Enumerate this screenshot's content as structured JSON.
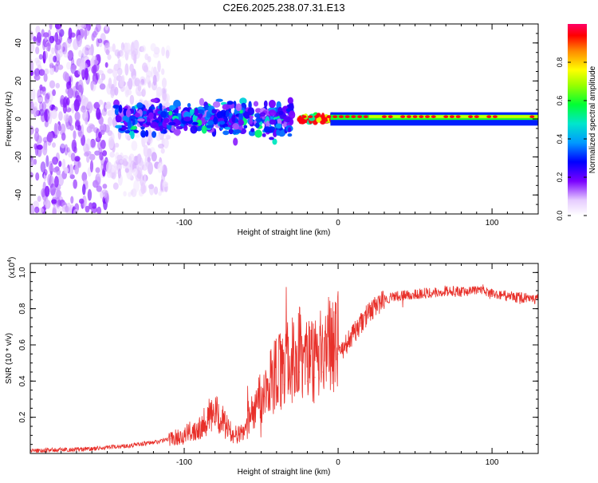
{
  "figure_title": "C2E6.2025.238.07.31.E13",
  "chart_data": [
    {
      "type": "heatmap",
      "title": "C2E6.2025.238.07.31.E13",
      "xlabel": "Height of straight line (km)",
      "ylabel": "Frequency (Hz)",
      "xlim": [
        -200,
        130
      ],
      "ylim": [
        -50,
        50
      ],
      "x_ticks": [
        -100,
        0,
        100
      ],
      "x_tick_labels": [
        "-100",
        "0",
        "100"
      ],
      "y_ticks": [
        -40,
        -20,
        0,
        20,
        40
      ],
      "y_tick_labels": [
        "-40",
        "-20",
        "0",
        "20",
        "40"
      ],
      "colorbar": {
        "label": "Normalized spectral amplitude",
        "range": [
          0,
          1
        ],
        "ticks": [
          0.0,
          0.2,
          0.4,
          0.6,
          0.8
        ],
        "tick_labels": [
          "0.0",
          "0.2",
          "0.4",
          "0.6",
          "0.8"
        ]
      },
      "description_regions": [
        {
          "x": [
            -200,
            -150
          ],
          "freq_spread": 50,
          "amplitude": 0.15
        },
        {
          "x": [
            -150,
            -110
          ],
          "freq_spread": 40,
          "amplitude": 0.08
        },
        {
          "x": [
            -145,
            -30
          ],
          "freq_spread": 8,
          "amplitude": 0.3
        },
        {
          "x": [
            -25,
            0
          ],
          "freq_spread": 2,
          "amplitude": 0.9
        },
        {
          "x": [
            0,
            130
          ],
          "freq_spread": 1.5,
          "amplitude": 0.7
        }
      ]
    },
    {
      "type": "line",
      "xlabel": "Height of straight line (km)",
      "ylabel": "SNR (10 * v/v)",
      "y_multiplier_label": "(x10",
      "y_multiplier_exp": "4",
      "y_multiplier_close": ")",
      "xlim": [
        -200,
        130
      ],
      "ylim": [
        0,
        1.05
      ],
      "x_ticks": [
        -100,
        0,
        100
      ],
      "x_tick_labels": [
        "-100",
        "0",
        "100"
      ],
      "y_ticks": [
        0.2,
        0.4,
        0.6,
        0.8,
        1.0
      ],
      "y_tick_labels": [
        "0.2",
        "0.4",
        "0.6",
        "0.8",
        "1.0"
      ],
      "series": [
        {
          "name": "SNR",
          "color": "#e8302a",
          "x": [
            -200,
            -180,
            -160,
            -140,
            -120,
            -100,
            -90,
            -85,
            -80,
            -75,
            -70,
            -65,
            -60,
            -55,
            -50,
            -45,
            -40,
            -35,
            -30,
            -25,
            -20,
            -15,
            -10,
            -5,
            0,
            5,
            10,
            15,
            20,
            25,
            30,
            40,
            50,
            60,
            70,
            80,
            90,
            100,
            110,
            120,
            130
          ],
          "y": [
            0.015,
            0.02,
            0.025,
            0.04,
            0.06,
            0.1,
            0.15,
            0.2,
            0.22,
            0.18,
            0.12,
            0.1,
            0.14,
            0.2,
            0.25,
            0.3,
            0.35,
            0.38,
            0.42,
            0.45,
            0.4,
            0.42,
            0.45,
            0.5,
            0.55,
            0.6,
            0.66,
            0.72,
            0.78,
            0.82,
            0.85,
            0.87,
            0.88,
            0.89,
            0.9,
            0.89,
            0.9,
            0.88,
            0.87,
            0.86,
            0.85
          ]
        }
      ]
    }
  ]
}
